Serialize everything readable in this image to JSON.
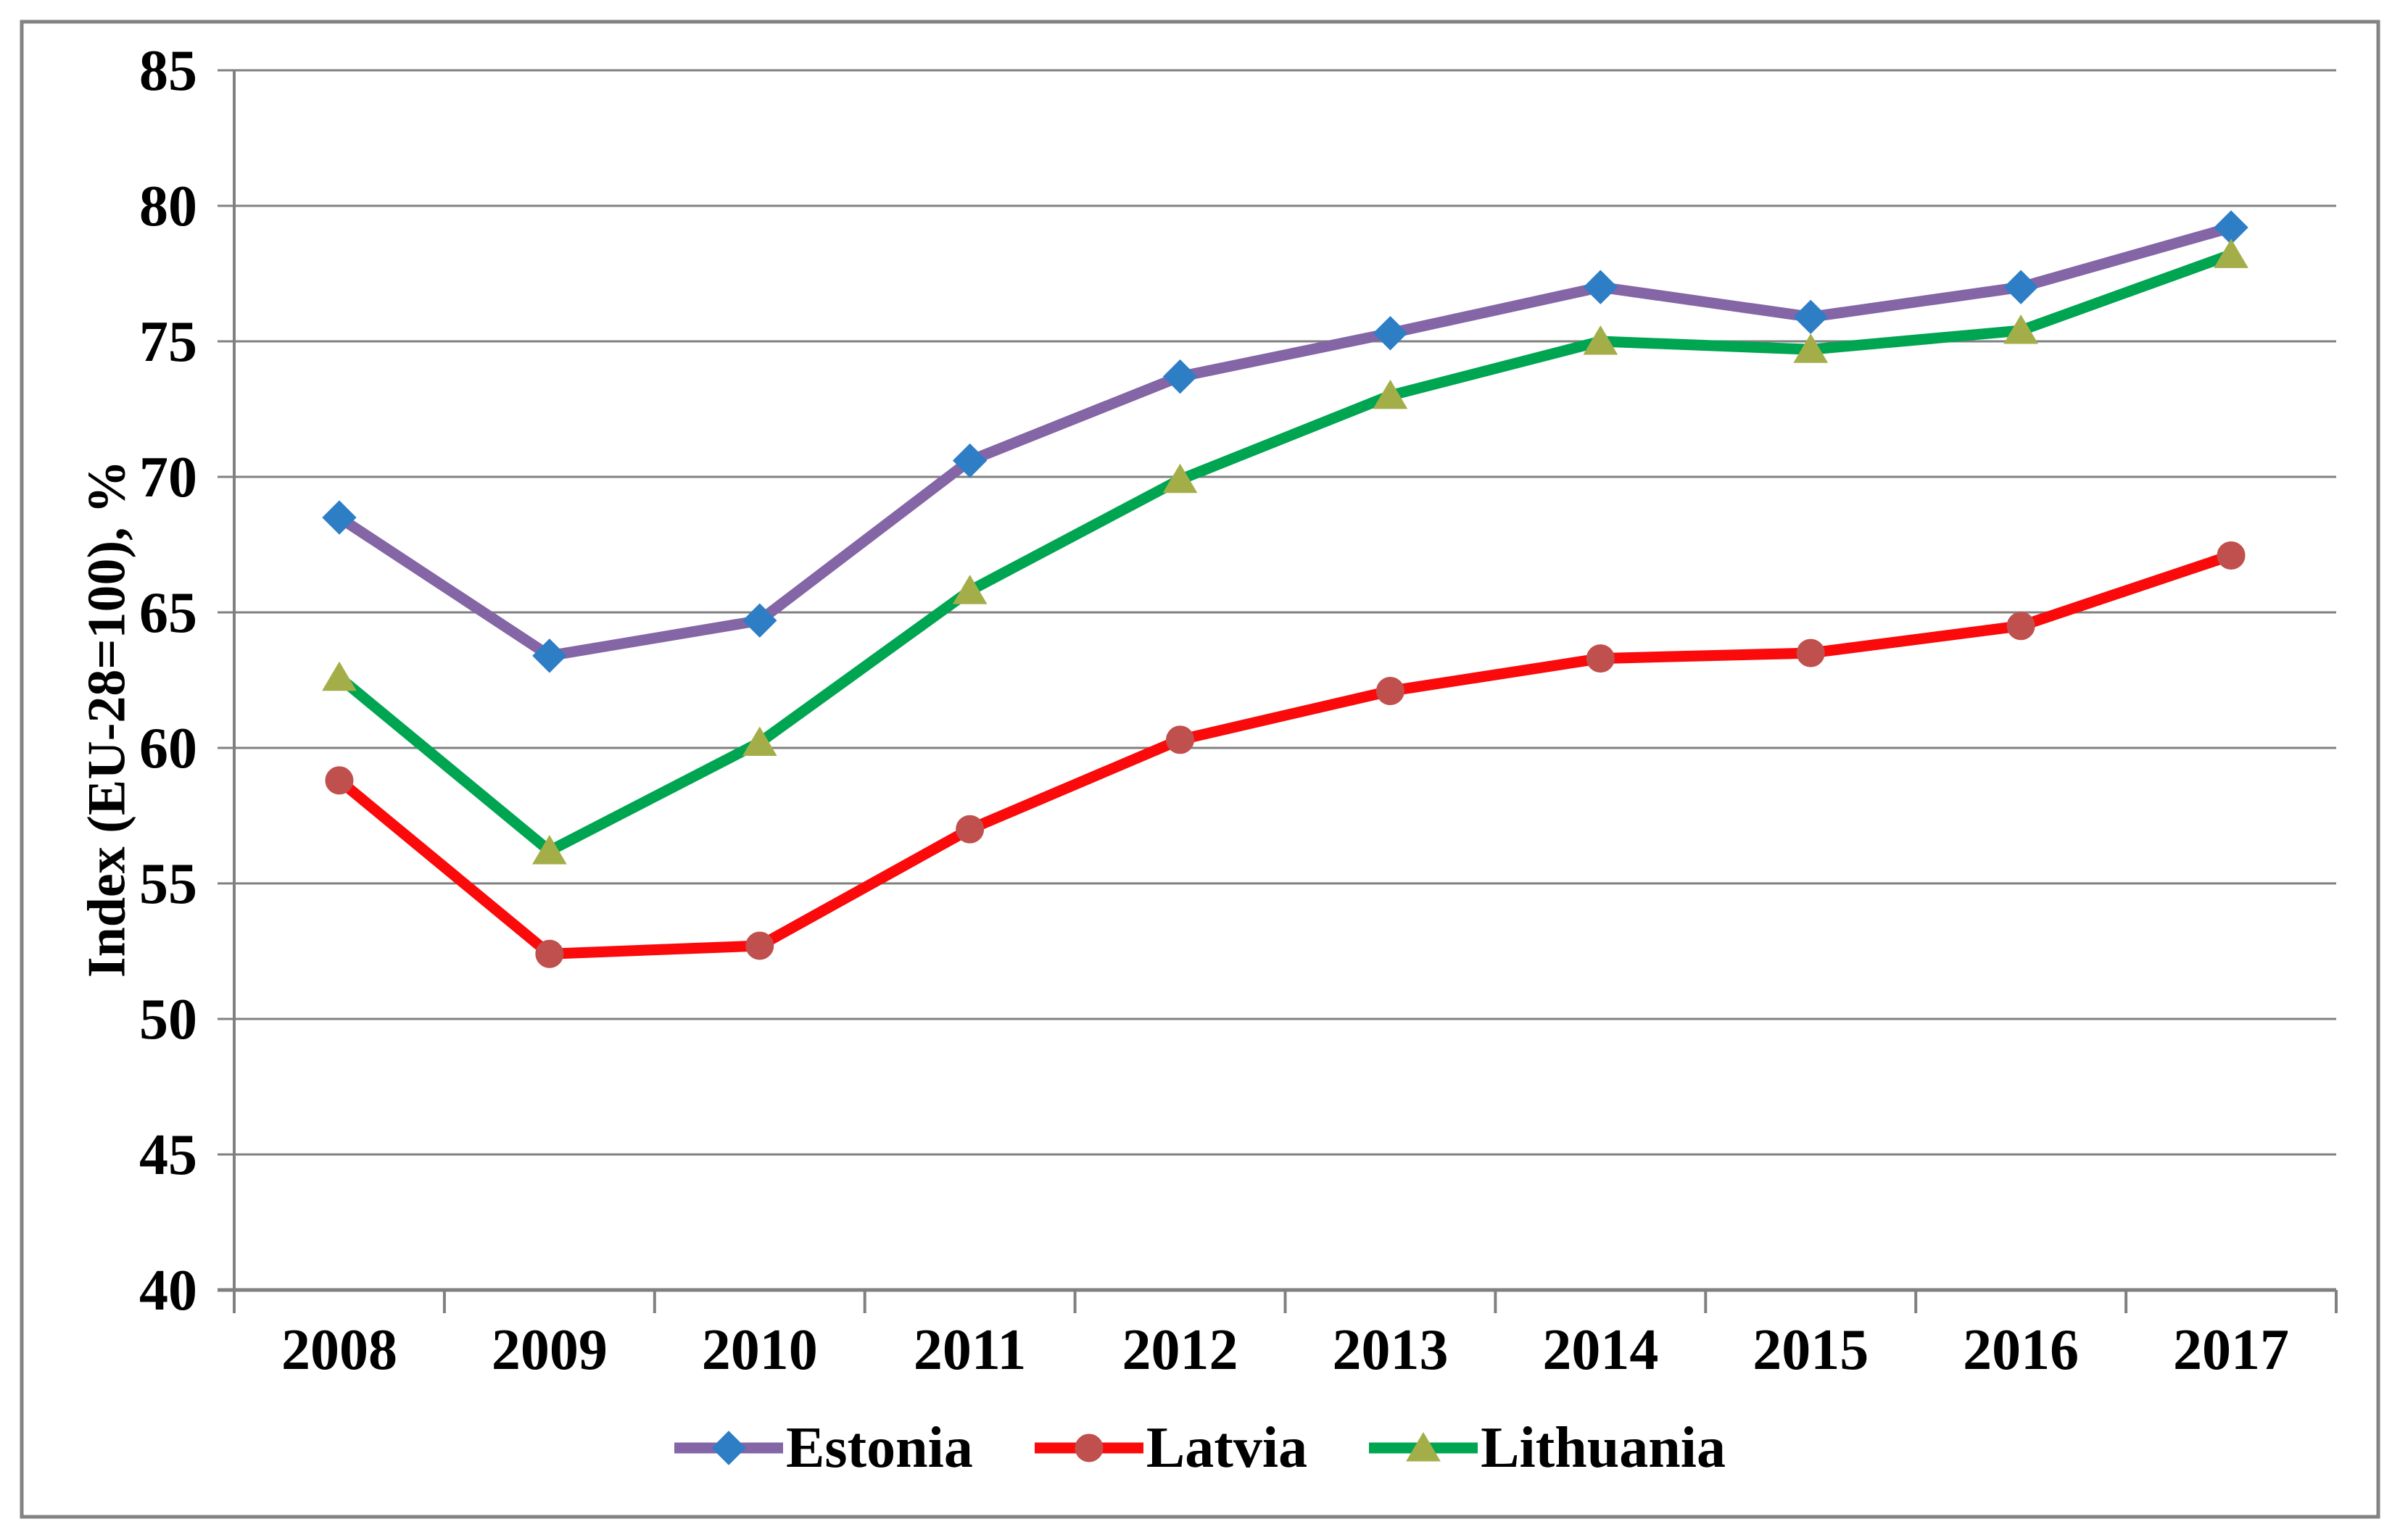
{
  "chart_data": {
    "type": "line",
    "title": "",
    "xlabel": "",
    "ylabel": "Index (EU-28=100), %",
    "ylim": [
      40,
      85
    ],
    "ytick_step": 5,
    "grid": true,
    "legend_position": "bottom",
    "categories": [
      "2008",
      "2009",
      "2010",
      "2011",
      "2012",
      "2013",
      "2014",
      "2015",
      "2016",
      "2017"
    ],
    "y_tick_labels": [
      "85",
      "80",
      "75",
      "70",
      "65",
      "60",
      "55",
      "50",
      "45",
      "40"
    ],
    "series": [
      {
        "name": "Estonia",
        "values": [
          68.5,
          63.4,
          64.7,
          70.6,
          73.7,
          75.3,
          77.0,
          75.9,
          77.0,
          79.2
        ]
      },
      {
        "name": "Latvia",
        "values": [
          58.8,
          52.4,
          52.7,
          57.0,
          60.3,
          62.1,
          63.3,
          63.5,
          64.5,
          67.1
        ]
      },
      {
        "name": "Lithuania",
        "values": [
          62.6,
          56.2,
          60.2,
          65.8,
          69.9,
          73.0,
          75.0,
          74.7,
          75.4,
          78.2
        ]
      }
    ]
  },
  "style": {
    "series": [
      {
        "shape": "diamond",
        "line_color": "#8465A6",
        "marker_color": "#2E7EC6"
      },
      {
        "shape": "circle",
        "line_color": "#FA0A0A",
        "marker_color": "#C0504D"
      },
      {
        "shape": "triangle",
        "line_color": "#00A551",
        "marker_color": "#A4AE49"
      }
    ],
    "grid_color": "#808080",
    "axis_color": "#808080",
    "border_color": "#828282",
    "text_color": "#000000",
    "background": "#FFFFFF"
  }
}
